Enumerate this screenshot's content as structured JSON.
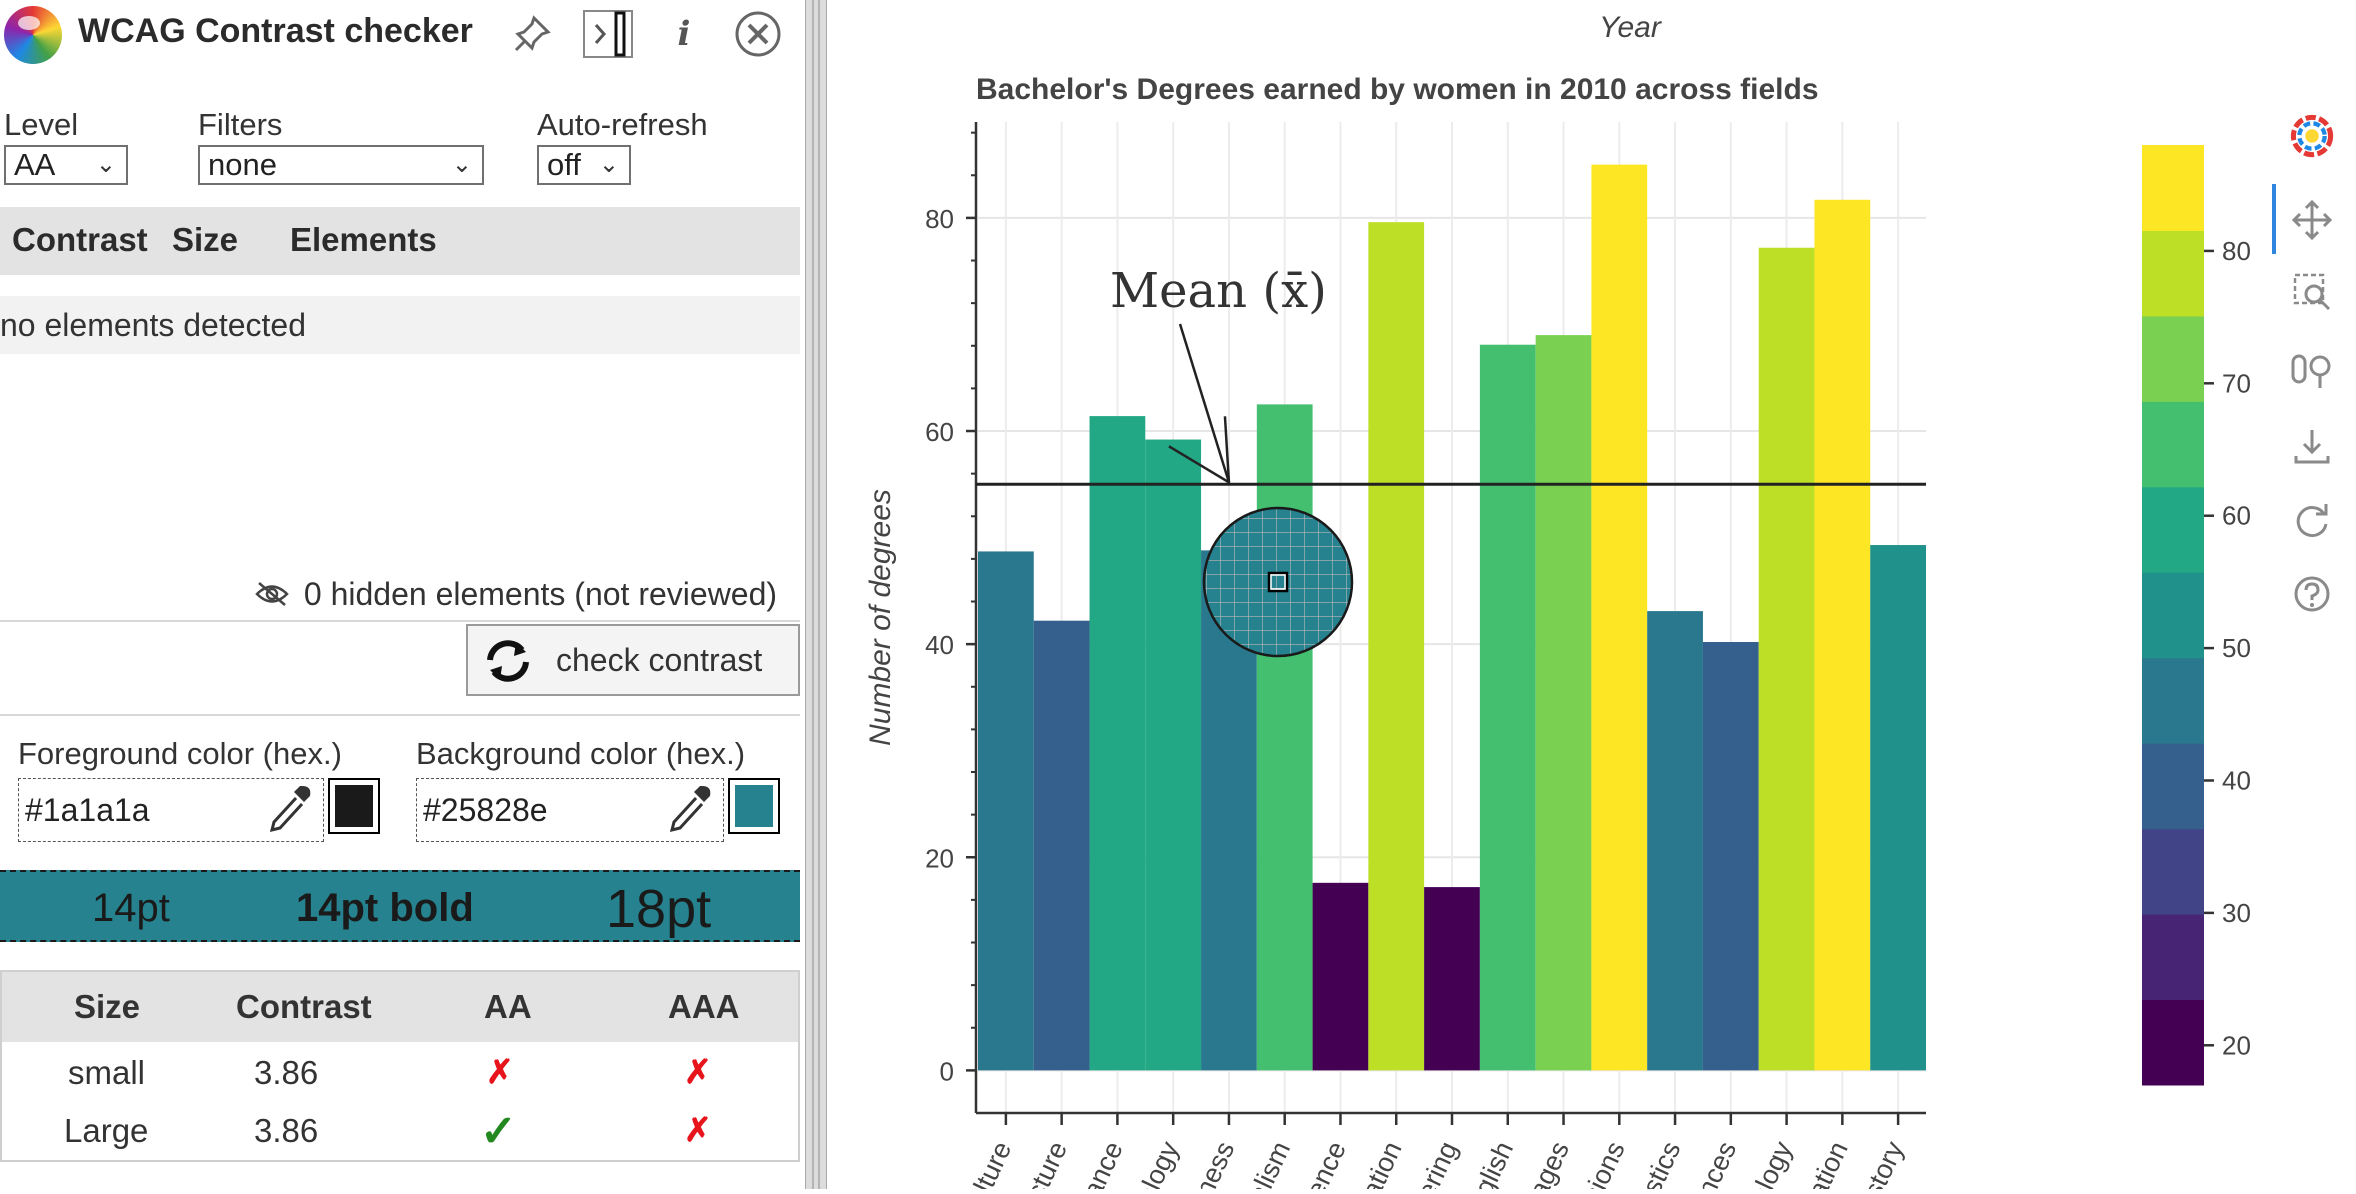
{
  "panel": {
    "title": "WCAG Contrast checker",
    "icons": [
      "pin-icon",
      "dock-toggle-icon",
      "info-icon",
      "close-icon"
    ],
    "info_glyph": "i",
    "level": {
      "label": "Level",
      "value": "AA"
    },
    "filters": {
      "label": "Filters",
      "value": "none"
    },
    "autorefresh": {
      "label": "Auto-refresh",
      "value": "off"
    },
    "columns": [
      "Contrast",
      "Size",
      "Elements"
    ],
    "no_elements": "no elements detected",
    "hidden_elements": "0 hidden elements (not reviewed)",
    "check_button": "check contrast",
    "foreground": {
      "label": "Foreground color (hex.)",
      "value": "#1a1a1a"
    },
    "background": {
      "label": "Background color (hex.)",
      "value": "#25828e"
    },
    "preview": {
      "small": "14pt",
      "bold": "14pt bold",
      "large": "18pt"
    },
    "results": {
      "headers": [
        "Size",
        "Contrast",
        "AA",
        "AAA"
      ],
      "rows": [
        {
          "size": "small",
          "contrast": "3.86",
          "aa": "✗",
          "aaa": "✗"
        },
        {
          "size": "Large",
          "contrast": "3.86",
          "aa": "✓",
          "aaa": "✗"
        }
      ]
    }
  },
  "chart_data": {
    "type": "bar",
    "top_label": "Year",
    "title": "Bachelor's Degrees earned by women in 2010 across fields",
    "ylabel": "Number of degrees",
    "annotation": "Mean (x̄)",
    "mean": 55,
    "ylim": [
      -4,
      89
    ],
    "yticks": [
      0,
      20,
      40,
      60,
      80
    ],
    "categories": [
      "Agriculture",
      "Architecture",
      "Art and Performance",
      "Biology",
      "Business",
      "Communications and Journalism",
      "Computer Science",
      "Education",
      "Engineering",
      "English",
      "Foreign Languages",
      "Health Professions",
      "Math and Statistics",
      "Physical Sciences",
      "Psychology",
      "Public Administration",
      "Social Sciences and History"
    ],
    "tick_labels": [
      "ulture",
      "cture",
      "ance",
      "ology",
      "iness",
      "alism",
      "ience",
      "ation",
      "ering",
      "nglish",
      "ages",
      "sions",
      "tistics",
      "ences",
      "ology",
      "ation",
      "istory"
    ],
    "values": [
      48.7,
      42.2,
      61.4,
      59.2,
      48.8,
      62.5,
      17.6,
      79.6,
      17.2,
      68.1,
      69.0,
      85.0,
      43.1,
      40.2,
      77.2,
      81.7,
      49.3
    ],
    "colorbar": {
      "ticks": [
        20,
        30,
        40,
        50,
        60,
        70,
        80
      ],
      "colors": [
        "#440154",
        "#482475",
        "#414487",
        "#355f8d",
        "#2a788e",
        "#21918c",
        "#22a884",
        "#44bf70",
        "#7ad151",
        "#bddf26",
        "#fde725"
      ]
    }
  },
  "bokeh_tools": [
    "bokeh-logo-icon",
    "pan-icon",
    "box-zoom-icon",
    "wheel-zoom-icon",
    "save-icon",
    "reset-icon",
    "help-icon"
  ]
}
